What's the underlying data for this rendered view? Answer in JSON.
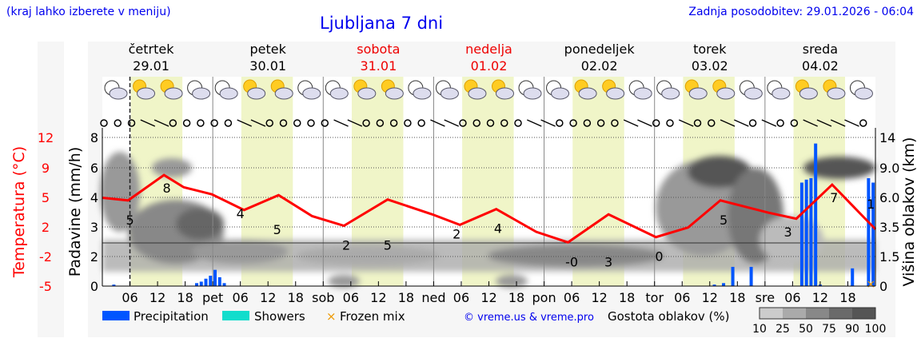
{
  "header": {
    "menu_hint": "(kraj lahko izberete v meniju)",
    "title": "Ljubljana 7 dni",
    "updated": "Zadnja posodobitev: 29.01.2026 - 06:04"
  },
  "days": [
    {
      "name": "četrtek",
      "date": "29.01",
      "weekend": false
    },
    {
      "name": "petek",
      "date": "30.01",
      "weekend": false
    },
    {
      "name": "sobota",
      "date": "31.01",
      "weekend": true
    },
    {
      "name": "nedelja",
      "date": "01.02",
      "weekend": true
    },
    {
      "name": "ponedeljek",
      "date": "02.02",
      "weekend": false
    },
    {
      "name": "torek",
      "date": "03.02",
      "weekend": false
    },
    {
      "name": "sreda",
      "date": "04.02",
      "weekend": false
    }
  ],
  "colors": {
    "temperature": "#ff0000",
    "precipitation": "#0055ff",
    "showers": "#11ddcc",
    "frozen": "#ee9900",
    "daylight": "#f0f5c8",
    "weekend": "#ee0000",
    "link": "#0000ee"
  },
  "chart_data": {
    "type": "line",
    "x_unit": "hours from 29.01 00:00",
    "x_tick_labels": [
      "06",
      "12",
      "18",
      "pet",
      "06",
      "12",
      "18",
      "sob",
      "06",
      "12",
      "18",
      "ned",
      "06",
      "12",
      "18",
      "pon",
      "06",
      "12",
      "18",
      "tor",
      "06",
      "12",
      "18",
      "sre",
      "06",
      "12",
      "18"
    ],
    "now_marker_hour": 6,
    "left_axis_1": {
      "label": "Temperatura (°C)",
      "ticks": [
        "12",
        "9",
        "5",
        "2",
        "-2",
        "-5"
      ],
      "range": [
        -5,
        12
      ]
    },
    "left_axis_2": {
      "label": "Padavine (mm/h)",
      "ticks": [
        "8",
        "6",
        "4",
        "3",
        "2",
        "0"
      ]
    },
    "right_axis": {
      "label": "Višina oblakov (km)",
      "ticks": [
        "14",
        "9.0",
        "6.0",
        "3.5",
        "1.5",
        "0"
      ]
    },
    "grid": true,
    "temperature": {
      "hours": [
        0,
        5.6,
        13.4,
        17.7,
        23.8,
        30.8,
        38.3,
        45.6,
        52.5,
        62,
        71.7,
        77.7,
        85.6,
        94.3,
        101.2,
        110,
        120.3,
        127.3,
        134.3,
        144.7,
        150.8,
        158.6,
        168
      ],
      "values": [
        5.1,
        4.8,
        7.7,
        6.3,
        5.5,
        3.7,
        5.4,
        3.0,
        1.9,
        4.9,
        3.2,
        2.0,
        3.8,
        1.2,
        0.0,
        3.2,
        0.6,
        1.7,
        4.8,
        3.4,
        2.7,
        6.6,
        1.5
      ]
    },
    "temperature_labels": [
      {
        "hour": 6,
        "text": "5"
      },
      {
        "hour": 14,
        "text": "8"
      },
      {
        "hour": 30,
        "text": "4"
      },
      {
        "hour": 38,
        "text": "5"
      },
      {
        "hour": 53,
        "text": "2"
      },
      {
        "hour": 62,
        "text": "5"
      },
      {
        "hour": 77,
        "text": "2"
      },
      {
        "hour": 86,
        "text": "4"
      },
      {
        "hour": 102,
        "text": "-0"
      },
      {
        "hour": 110,
        "text": "3"
      },
      {
        "hour": 121,
        "text": "0"
      },
      {
        "hour": 135,
        "text": "5"
      },
      {
        "hour": 149,
        "text": "3"
      },
      {
        "hour": 159,
        "text": "7"
      },
      {
        "hour": 167,
        "text": "1"
      }
    ],
    "precipitation": {
      "hours": [
        2.5,
        20.5,
        21.5,
        22.5,
        23.5,
        24.5,
        25.5,
        26.5,
        133,
        135,
        137,
        141,
        152,
        153,
        154,
        155,
        156,
        163,
        166.5,
        167.5
      ],
      "values": [
        0.1,
        0.2,
        0.3,
        0.5,
        0.7,
        1.1,
        0.6,
        0.2,
        0.1,
        0.2,
        1.3,
        1.3,
        5.0,
        5.2,
        5.3,
        7.6,
        0.1,
        1.2,
        5.3,
        5.0
      ]
    },
    "frozen_hours": [
      167
    ],
    "legend": [
      "Precipitation",
      "Showers",
      "Frozen mix"
    ],
    "legend_placement": "bottom",
    "cloud_legend": {
      "label": "Gostota oblakov (%)",
      "ticks": [
        "10",
        "25",
        "50",
        "75",
        "90",
        "100"
      ]
    }
  },
  "credit": "© vreme.us & vreme.pro"
}
